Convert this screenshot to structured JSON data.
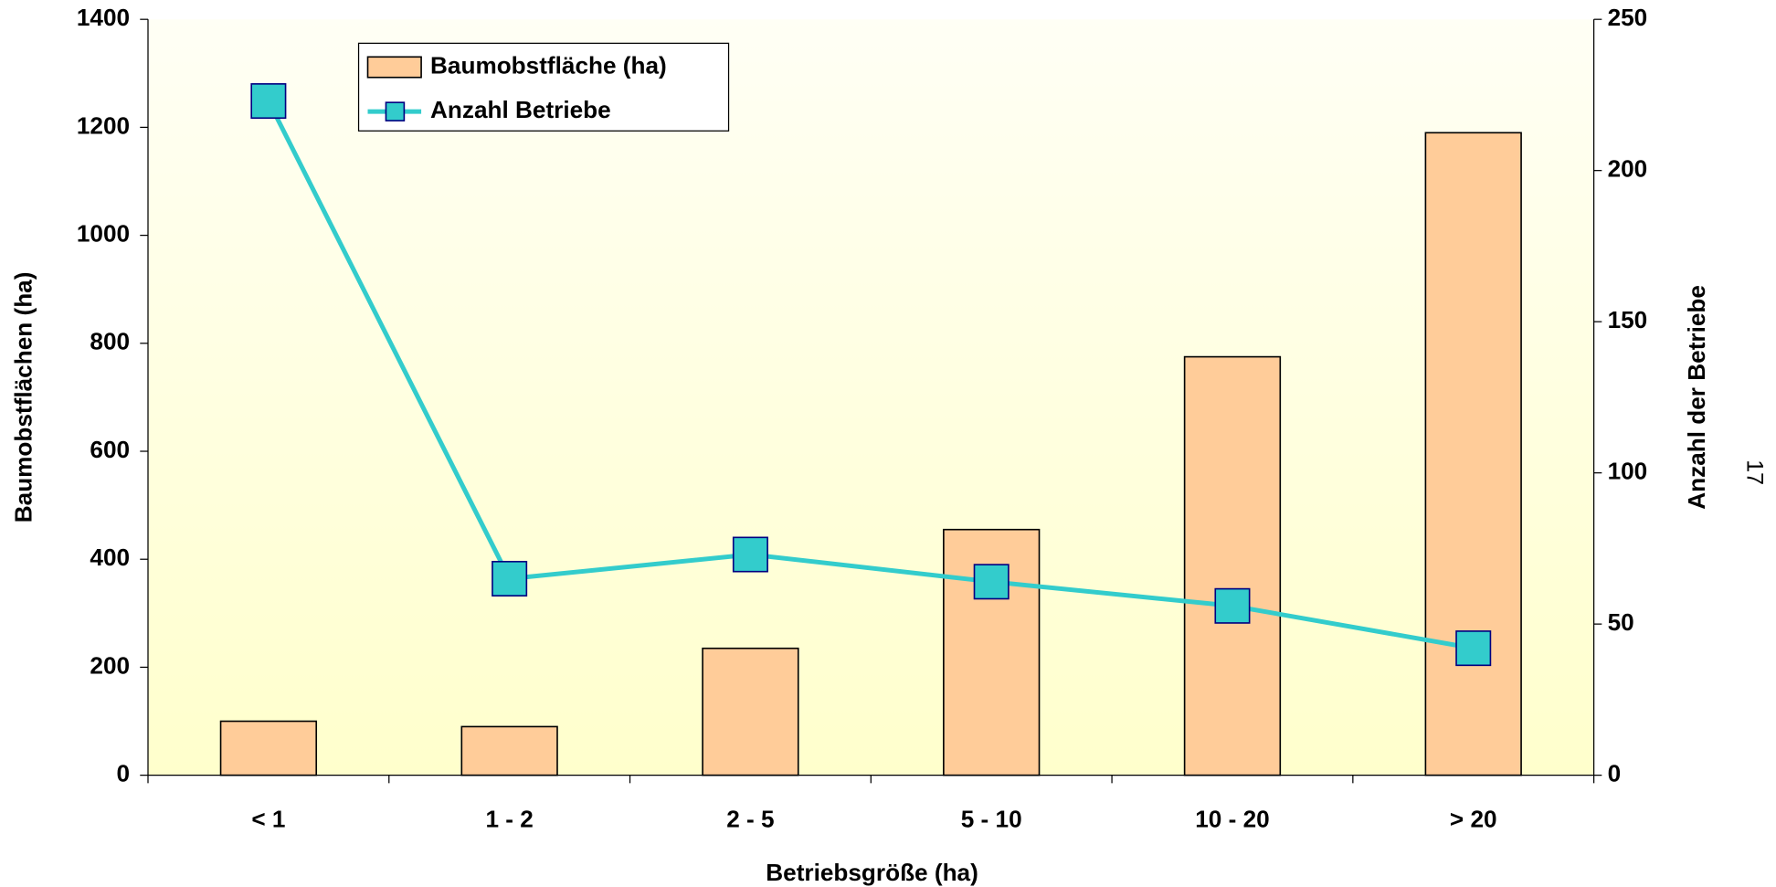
{
  "chart_data": {
    "type": "bar_line",
    "x_label": "Betriebsgröße (ha)",
    "y_label": "Baumobstflächen (ha)",
    "y2_label": "Anzahl der Betriebe",
    "categories": [
      "< 1",
      "1 - 2",
      "2 - 5",
      "5 - 10",
      "10 - 20",
      "> 20"
    ],
    "series": [
      {
        "name": "Baumobstfläche (ha)",
        "type": "bar",
        "color": "#FFCC99",
        "values": [
          100,
          90,
          235,
          455,
          775,
          1190
        ]
      },
      {
        "name": "Anzahl Betriebe",
        "type": "line",
        "axis": "y2",
        "color": "#33CCCC",
        "marker_color": "#33CCCC",
        "values": [
          223,
          65,
          73,
          64,
          56,
          42
        ]
      }
    ],
    "ylim": [
      0,
      1400
    ],
    "yticks": [
      0,
      200,
      400,
      600,
      800,
      1000,
      1200,
      1400
    ],
    "y2lim": [
      0,
      250
    ],
    "y2ticks": [
      0,
      50,
      100,
      150,
      200,
      250
    ],
    "legend": "top-left"
  },
  "page_number": "17"
}
